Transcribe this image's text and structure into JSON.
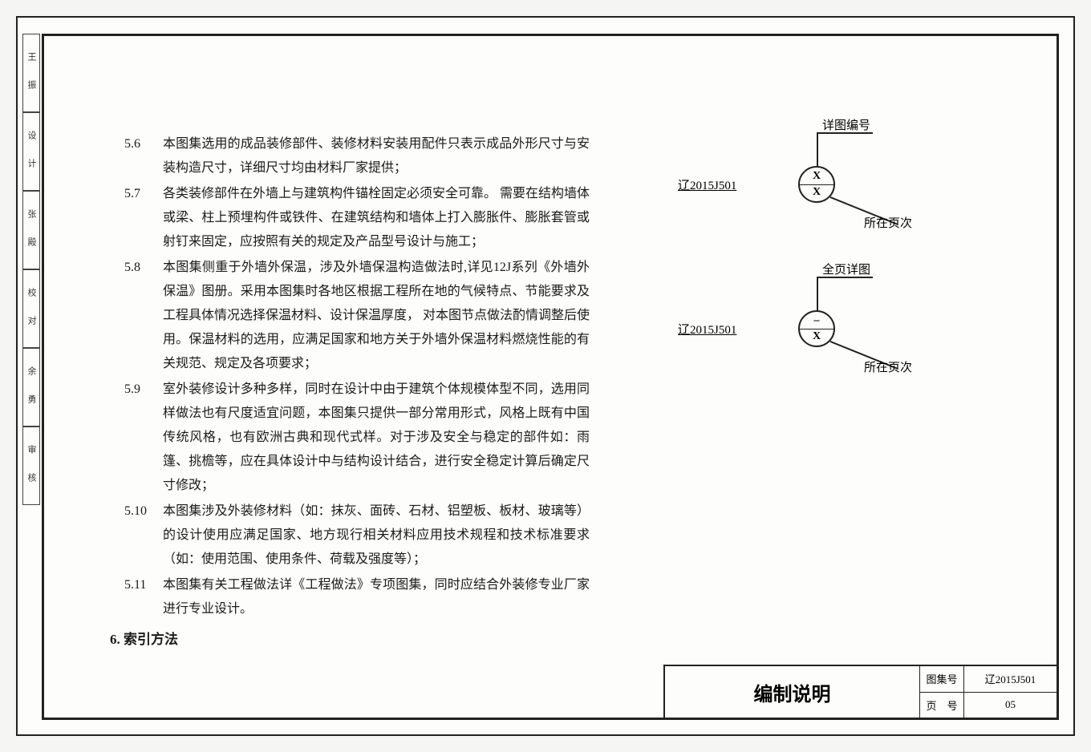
{
  "side_labels": [
    "王 振",
    "设 计",
    "张 殿",
    "校 对",
    "余 勇",
    "审 核"
  ],
  "items": [
    {
      "num": "5.6",
      "text": "本图集选用的成品装修部件、装修材料安装用配件只表示成品外形尺寸与安装构造尺寸，详细尺寸均由材料厂家提供；"
    },
    {
      "num": "5.7",
      "text": "各类装修部件在外墙上与建筑构件锚栓固定必须安全可靠。 需要在结构墙体或梁、柱上预埋构件或铁件、在建筑结构和墙体上打入膨胀件、膨胀套管或射钉来固定，应按照有关的规定及产品型号设计与施工；"
    },
    {
      "num": "5.8",
      "text": "本图集侧重于外墙外保温，涉及外墙保温构造做法时,详见12J系列《外墙外保温》图册。采用本图集时各地区根据工程所在地的气候特点、节能要求及工程具体情况选择保温材料、设计保温厚度， 对本图节点做法酌情调整后使用。保温材料的选用，应满足国家和地方关于外墙外保温材料燃烧性能的有关规范、规定及各项要求；"
    },
    {
      "num": "5.9",
      "text": "室外装修设计多种多样，同时在设计中由于建筑个体规模体型不同，选用同样做法也有尺度适宜问题，本图集只提供一部分常用形式，风格上既有中国传统风格，也有欧洲古典和现代式样。对于涉及安全与稳定的部件如：雨篷、挑檐等，应在具体设计中与结构设计结合，进行安全稳定计算后确定尺寸修改；"
    },
    {
      "num": "5.10",
      "text": "本图集涉及外装修材料（如：抹灰、面砖、石材、铝塑板、板材、玻璃等）的设计使用应满足国家、地方现行相关材料应用技术规程和技术标准要求（如：使用范围、使用条件、荷载及强度等）；"
    },
    {
      "num": "5.11",
      "text": "本图集有关工程做法详《工程做法》专项图集，同时应结合外装修专业厂家进行专业设计。"
    }
  ],
  "section6": "6.  索引方法",
  "diagrams": [
    {
      "code": "辽2015J501",
      "circle_top": "X",
      "circle_bot": "X",
      "label_top": "详图编号",
      "label_bot": "所在页次"
    },
    {
      "code": "辽2015J501",
      "circle_top": "–",
      "circle_bot": "X",
      "label_top": "全页详图",
      "label_bot": "所在页次"
    }
  ],
  "title_block": {
    "title": "编制说明",
    "rows": [
      {
        "label": "图集号",
        "value": "辽2015J501"
      },
      {
        "label": "页　号",
        "value": "05"
      }
    ]
  },
  "colors": {
    "border": "#222222",
    "bg": "#fdfdfb",
    "text": "#1a1a1a"
  }
}
